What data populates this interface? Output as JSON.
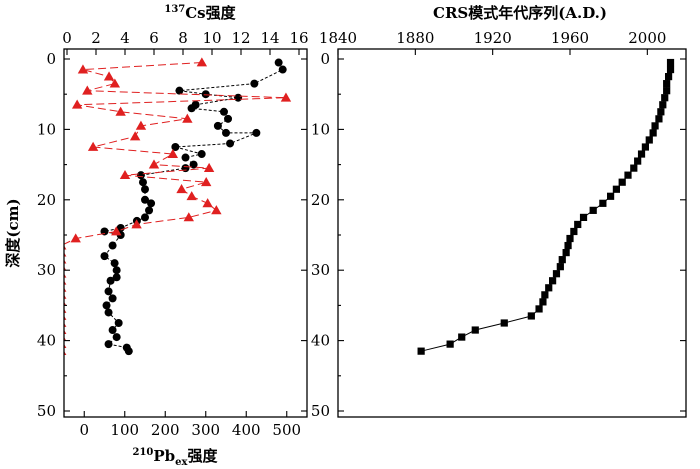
{
  "chart_data": [
    {
      "type": "scatter",
      "title": "",
      "y_axis": {
        "label": "深度(cm)",
        "range": [
          0,
          50
        ],
        "ticks": [
          0,
          10,
          20,
          30,
          40,
          50
        ],
        "inverted": true
      },
      "x_axis_top": {
        "label_pre": "137",
        "label_main": "Cs强度",
        "range": [
          0,
          16
        ],
        "ticks": [
          0,
          2,
          4,
          6,
          8,
          10,
          12,
          14,
          16
        ]
      },
      "x_axis_bottom": {
        "label_pre": "210",
        "label_main": "Pb",
        "label_sub": "ex",
        "label_post": "强度",
        "range": [
          -50,
          550
        ],
        "ticks": [
          0,
          100,
          200,
          300,
          400,
          500
        ]
      },
      "series": [
        {
          "axis": "bottom",
          "marker": "circle",
          "color": "#000000",
          "line": "dashed",
          "points": [
            [
              480,
              0.5
            ],
            [
              490,
              1.5
            ],
            [
              420,
              3.5
            ],
            [
              235,
              4.5
            ],
            [
              300,
              5
            ],
            [
              380,
              5.5
            ],
            [
              275,
              6.5
            ],
            [
              265,
              7
            ],
            [
              345,
              7.5
            ],
            [
              355,
              8.5
            ],
            [
              330,
              9.5
            ],
            [
              350,
              10.5
            ],
            [
              425,
              10.5
            ],
            [
              360,
              12
            ],
            [
              225,
              12.5
            ],
            [
              290,
              13.5
            ],
            [
              250,
              14
            ],
            [
              270,
              15
            ],
            [
              250,
              15.5
            ],
            [
              140,
              16.5
            ],
            [
              145,
              17.5
            ],
            [
              150,
              18.5
            ],
            [
              150,
              20
            ],
            [
              165,
              20.5
            ],
            [
              160,
              21.5
            ],
            [
              150,
              22.5
            ],
            [
              130,
              23
            ],
            [
              90,
              24
            ],
            [
              50,
              24.5
            ],
            [
              90,
              25
            ],
            [
              70,
              26.5
            ],
            [
              50,
              28
            ],
            [
              75,
              29
            ],
            [
              80,
              30
            ],
            [
              80,
              31
            ],
            [
              65,
              31.5
            ],
            [
              60,
              33
            ],
            [
              70,
              34
            ],
            [
              55,
              35
            ],
            [
              60,
              36
            ],
            [
              85,
              37.5
            ],
            [
              70,
              38.5
            ],
            [
              80,
              39.5
            ],
            [
              60,
              40.5
            ],
            [
              105,
              41
            ],
            [
              110,
              41.5
            ]
          ]
        },
        {
          "axis": "top",
          "marker": "triangle",
          "color": "#e02020",
          "line": "dashed",
          "points": [
            [
              9.3,
              0.5
            ],
            [
              1.1,
              1.5
            ],
            [
              2.9,
              2.5
            ],
            [
              3.3,
              3.5
            ],
            [
              1.4,
              4.5
            ],
            [
              15.1,
              5.5
            ],
            [
              0.7,
              6.5
            ],
            [
              3.7,
              7.5
            ],
            [
              8.3,
              8.5
            ],
            [
              5.1,
              9.5
            ],
            [
              4.7,
              11
            ],
            [
              1.8,
              12.5
            ],
            [
              7.3,
              13.5
            ],
            [
              6.0,
              15
            ],
            [
              9.8,
              15.5
            ],
            [
              4.0,
              16.5
            ],
            [
              9.6,
              17.5
            ],
            [
              7.9,
              18.5
            ],
            [
              8.6,
              19.5
            ],
            [
              9.7,
              20.5
            ],
            [
              10.3,
              21.5
            ],
            [
              8.4,
              22.5
            ],
            [
              4.8,
              23.5
            ],
            [
              3.4,
              24.5
            ],
            [
              0.6,
              25.5
            ],
            [
              -0.4,
              26.5
            ],
            [
              -0.4,
              27.5
            ],
            [
              -0.4,
              28.5
            ],
            [
              -0.4,
              29.5
            ],
            [
              -0.4,
              30.5
            ],
            [
              -0.4,
              31.5
            ],
            [
              -0.4,
              32.5
            ],
            [
              -0.4,
              33.5
            ],
            [
              -0.4,
              34.5
            ],
            [
              -0.4,
              35.5
            ],
            [
              -0.4,
              36.5
            ],
            [
              -0.4,
              37.5
            ],
            [
              -0.4,
              38.5
            ],
            [
              -0.4,
              39.5
            ],
            [
              -0.4,
              40.5
            ],
            [
              -0.4,
              41.5
            ]
          ]
        }
      ]
    },
    {
      "type": "line",
      "title": "",
      "x_axis_top": {
        "label": "CRS模式年代序列(A.D.)",
        "range": [
          1840,
          2020
        ],
        "ticks": [
          1840,
          1880,
          1920,
          1960,
          2000
        ]
      },
      "y_axis": {
        "label": "",
        "range": [
          0,
          50
        ],
        "ticks": [
          0,
          10,
          20,
          30,
          40,
          50
        ],
        "inverted": true
      },
      "series": [
        {
          "marker": "square",
          "color": "#000000",
          "line": "solid",
          "points": [
            [
              2012,
              0.5
            ],
            [
              2012,
              1.5
            ],
            [
              2011,
              2.5
            ],
            [
              2010,
              3.5
            ],
            [
              2010,
              4.5
            ],
            [
              2009,
              5.5
            ],
            [
              2008,
              6.5
            ],
            [
              2007,
              7.5
            ],
            [
              2006,
              8.5
            ],
            [
              2004,
              9.5
            ],
            [
              2003,
              10.5
            ],
            [
              2001,
              11.5
            ],
            [
              1999,
              12.5
            ],
            [
              1997,
              13.5
            ],
            [
              1995,
              14.5
            ],
            [
              1993,
              15.5
            ],
            [
              1990,
              16.5
            ],
            [
              1987,
              17.5
            ],
            [
              1984,
              18.5
            ],
            [
              1981,
              19.5
            ],
            [
              1977,
              20.5
            ],
            [
              1972,
              21.5
            ],
            [
              1967,
              22.5
            ],
            [
              1964,
              23.5
            ],
            [
              1962,
              24.5
            ],
            [
              1960,
              25.5
            ],
            [
              1959,
              26.5
            ],
            [
              1958,
              27.5
            ],
            [
              1956,
              28.5
            ],
            [
              1955,
              29.5
            ],
            [
              1953,
              30.5
            ],
            [
              1951,
              31.5
            ],
            [
              1949,
              32.5
            ],
            [
              1947,
              33.5
            ],
            [
              1946,
              34.5
            ],
            [
              1944,
              35.5
            ],
            [
              1940,
              36.5
            ],
            [
              1926,
              37.5
            ],
            [
              1911,
              38.5
            ],
            [
              1904,
              39.5
            ],
            [
              1898,
              40.5
            ],
            [
              1883,
              41.5
            ]
          ]
        }
      ]
    }
  ]
}
